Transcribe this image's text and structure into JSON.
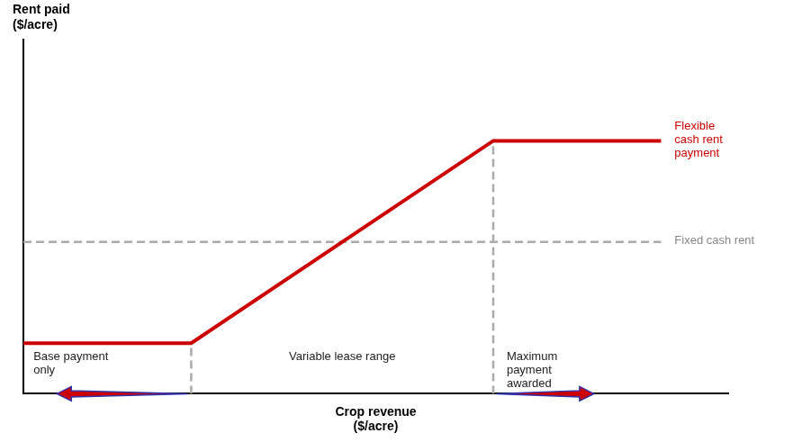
{
  "chart_data": {
    "type": "line",
    "xlabel": "Crop revenue\n($/acre)",
    "ylabel": "Rent paid\n($/acre)",
    "xlim": [
      0,
      10.5
    ],
    "ylim": [
      0,
      7.0
    ],
    "tick_labels": false,
    "grid": false,
    "series": [
      {
        "x": [
          0,
          2.5,
          7.0,
          9.5
        ],
        "values": [
          1.0,
          1.0,
          5.0,
          5.0
        ],
        "color": "#cc0000"
      },
      {
        "x": [
          0,
          9.5
        ],
        "values": [
          3.0,
          3.0
        ],
        "color": "#aaaaaa",
        "line_style": "dashed"
      },
      {
        "x": [
          2.5,
          2.5
        ],
        "values": [
          0,
          1.0
        ],
        "color": "#aaaaaa",
        "line_style": "dashed"
      },
      {
        "x": [
          7.0,
          7.0
        ],
        "values": [
          0,
          5.0
        ],
        "color": "#aaaaaa",
        "line_style": "dashed"
      }
    ],
    "annotations": [
      {
        "text": "Flexible\ncash rent\npayment",
        "x": 9.7,
        "y": 5.0,
        "color": "#cc0000"
      },
      {
        "text": "Fixed cash rent",
        "x": 9.7,
        "y": 3.0,
        "color": "#888888"
      },
      {
        "text": "Base payment\nonly",
        "x": 0.15,
        "y": 0.85,
        "color": "#222222"
      },
      {
        "text": "Variable lease range",
        "x": 4.75,
        "y": 0.85,
        "color": "#222222"
      },
      {
        "text": "Maximum\npayment\nawarded",
        "x": 7.2,
        "y": 0.85,
        "color": "#222222"
      }
    ],
    "arrows": [
      {
        "from": [
          2.45,
          0.0
        ],
        "to": [
          0.5,
          0.0
        ],
        "color": "#cc0000"
      },
      {
        "from": [
          7.05,
          0.0
        ],
        "to": [
          8.5,
          0.0
        ],
        "color": "#cc0000"
      }
    ]
  }
}
